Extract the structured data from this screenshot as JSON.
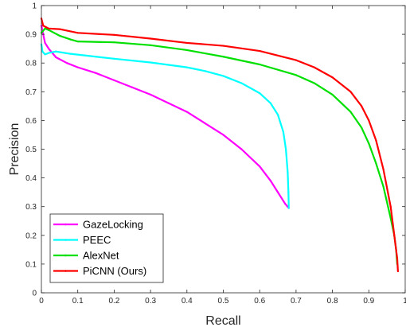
{
  "chart_data": {
    "type": "line",
    "title": "",
    "xlabel": "Recall",
    "ylabel": "Precision",
    "xlim": [
      0,
      1
    ],
    "ylim": [
      0,
      1
    ],
    "xticks": [
      "0",
      "0.1",
      "0.2",
      "0.3",
      "0.4",
      "0.5",
      "0.6",
      "0.7",
      "0.8",
      "0.9",
      "1"
    ],
    "yticks": [
      "0",
      "0.1",
      "0.2",
      "0.3",
      "0.4",
      "0.5",
      "0.6",
      "0.7",
      "0.8",
      "0.9",
      "1"
    ],
    "grid": false,
    "legend_position": "bottom-left",
    "series": [
      {
        "name": "GazeLocking",
        "color": "#ff00ff",
        "points": [
          [
            0.0,
            0.93
          ],
          [
            0.005,
            0.9
          ],
          [
            0.01,
            0.87
          ],
          [
            0.02,
            0.85
          ],
          [
            0.04,
            0.82
          ],
          [
            0.07,
            0.8
          ],
          [
            0.1,
            0.785
          ],
          [
            0.15,
            0.765
          ],
          [
            0.2,
            0.74
          ],
          [
            0.25,
            0.715
          ],
          [
            0.3,
            0.69
          ],
          [
            0.35,
            0.66
          ],
          [
            0.4,
            0.63
          ],
          [
            0.45,
            0.59
          ],
          [
            0.5,
            0.55
          ],
          [
            0.55,
            0.5
          ],
          [
            0.6,
            0.44
          ],
          [
            0.63,
            0.39
          ],
          [
            0.65,
            0.35
          ],
          [
            0.67,
            0.31
          ],
          [
            0.68,
            0.295
          ]
        ]
      },
      {
        "name": "PEEC",
        "color": "#00ffff",
        "points": [
          [
            0.0,
            0.865
          ],
          [
            0.003,
            0.84
          ],
          [
            0.01,
            0.83
          ],
          [
            0.02,
            0.835
          ],
          [
            0.04,
            0.84
          ],
          [
            0.08,
            0.832
          ],
          [
            0.15,
            0.822
          ],
          [
            0.2,
            0.815
          ],
          [
            0.3,
            0.802
          ],
          [
            0.4,
            0.785
          ],
          [
            0.45,
            0.772
          ],
          [
            0.5,
            0.755
          ],
          [
            0.55,
            0.73
          ],
          [
            0.6,
            0.695
          ],
          [
            0.63,
            0.66
          ],
          [
            0.65,
            0.62
          ],
          [
            0.665,
            0.56
          ],
          [
            0.672,
            0.5
          ],
          [
            0.677,
            0.42
          ],
          [
            0.679,
            0.35
          ],
          [
            0.68,
            0.295
          ]
        ]
      },
      {
        "name": "AlexNet",
        "color": "#00e000",
        "points": [
          [
            0.0,
            0.905
          ],
          [
            0.01,
            0.92
          ],
          [
            0.02,
            0.915
          ],
          [
            0.05,
            0.895
          ],
          [
            0.08,
            0.882
          ],
          [
            0.1,
            0.875
          ],
          [
            0.2,
            0.872
          ],
          [
            0.3,
            0.862
          ],
          [
            0.4,
            0.845
          ],
          [
            0.5,
            0.822
          ],
          [
            0.6,
            0.795
          ],
          [
            0.7,
            0.758
          ],
          [
            0.75,
            0.73
          ],
          [
            0.8,
            0.69
          ],
          [
            0.85,
            0.63
          ],
          [
            0.88,
            0.575
          ],
          [
            0.9,
            0.52
          ],
          [
            0.92,
            0.45
          ],
          [
            0.94,
            0.37
          ],
          [
            0.96,
            0.26
          ],
          [
            0.97,
            0.2
          ],
          [
            0.975,
            0.15
          ],
          [
            0.978,
            0.1
          ]
        ]
      },
      {
        "name": "PiCNN (Ours)",
        "color": "#ff0000",
        "points": [
          [
            0.0,
            0.955
          ],
          [
            0.005,
            0.93
          ],
          [
            0.02,
            0.92
          ],
          [
            0.05,
            0.918
          ],
          [
            0.1,
            0.905
          ],
          [
            0.2,
            0.898
          ],
          [
            0.3,
            0.885
          ],
          [
            0.4,
            0.87
          ],
          [
            0.5,
            0.86
          ],
          [
            0.6,
            0.842
          ],
          [
            0.7,
            0.81
          ],
          [
            0.75,
            0.785
          ],
          [
            0.8,
            0.75
          ],
          [
            0.85,
            0.7
          ],
          [
            0.88,
            0.65
          ],
          [
            0.9,
            0.6
          ],
          [
            0.92,
            0.53
          ],
          [
            0.94,
            0.43
          ],
          [
            0.96,
            0.3
          ],
          [
            0.97,
            0.2
          ],
          [
            0.978,
            0.12
          ],
          [
            0.98,
            0.075
          ]
        ]
      }
    ]
  }
}
